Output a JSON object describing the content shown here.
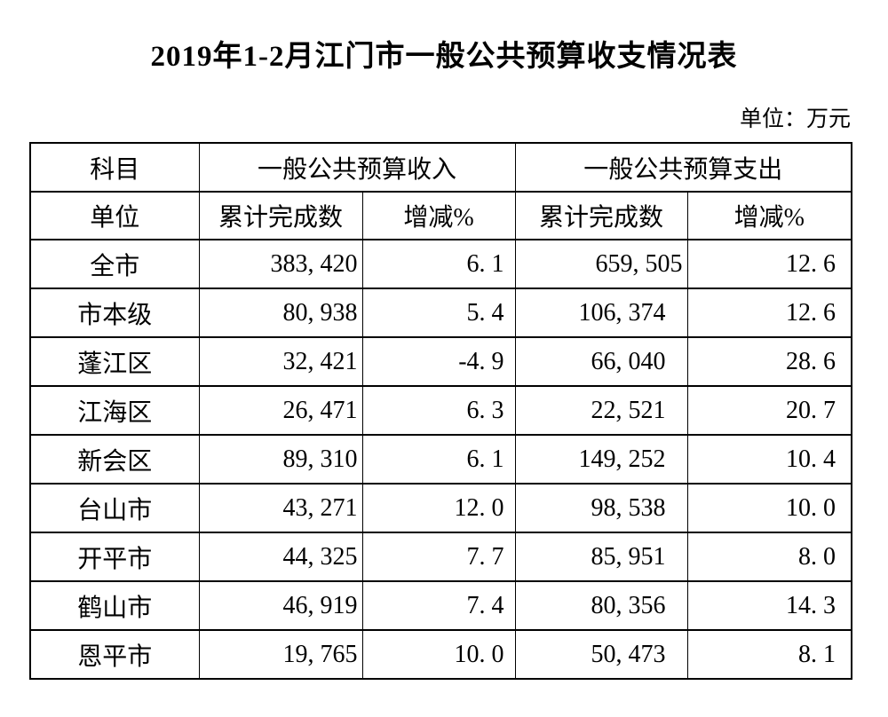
{
  "title": "2019年1-2月江门市一般公共预算收支情况表",
  "unit_note": "单位：万元",
  "table": {
    "header": {
      "subject": "科目",
      "unit": "单位",
      "income_group": "一般公共预算收入",
      "expense_group": "一般公共预算支出",
      "cumulative": "累计完成数",
      "change": "增减%"
    },
    "rows": [
      {
        "region": "全市",
        "income": "383, 420",
        "income_change": "6. 1",
        "expense": "659, 505",
        "expense_change": "12. 6"
      },
      {
        "region": "市本级",
        "income": "80, 938",
        "income_change": "5. 4",
        "expense": "106, 374",
        "expense_change": "12. 6"
      },
      {
        "region": "蓬江区",
        "income": "32, 421",
        "income_change": "-4. 9",
        "expense": "66, 040",
        "expense_change": "28. 6"
      },
      {
        "region": "江海区",
        "income": "26, 471",
        "income_change": "6. 3",
        "expense": "22, 521",
        "expense_change": "20. 7"
      },
      {
        "region": "新会区",
        "income": "89, 310",
        "income_change": "6. 1",
        "expense": "149, 252",
        "expense_change": "10. 4"
      },
      {
        "region": "台山市",
        "income": "43, 271",
        "income_change": "12. 0",
        "expense": "98, 538",
        "expense_change": "10. 0"
      },
      {
        "region": "开平市",
        "income": "44, 325",
        "income_change": "7. 7",
        "expense": "85, 951",
        "expense_change": "8. 0"
      },
      {
        "region": "鹤山市",
        "income": "46, 919",
        "income_change": "7. 4",
        "expense": "80, 356",
        "expense_change": "14. 3"
      },
      {
        "region": "恩平市",
        "income": "19, 765",
        "income_change": "10. 0",
        "expense": "50, 473",
        "expense_change": "8. 1"
      }
    ]
  }
}
